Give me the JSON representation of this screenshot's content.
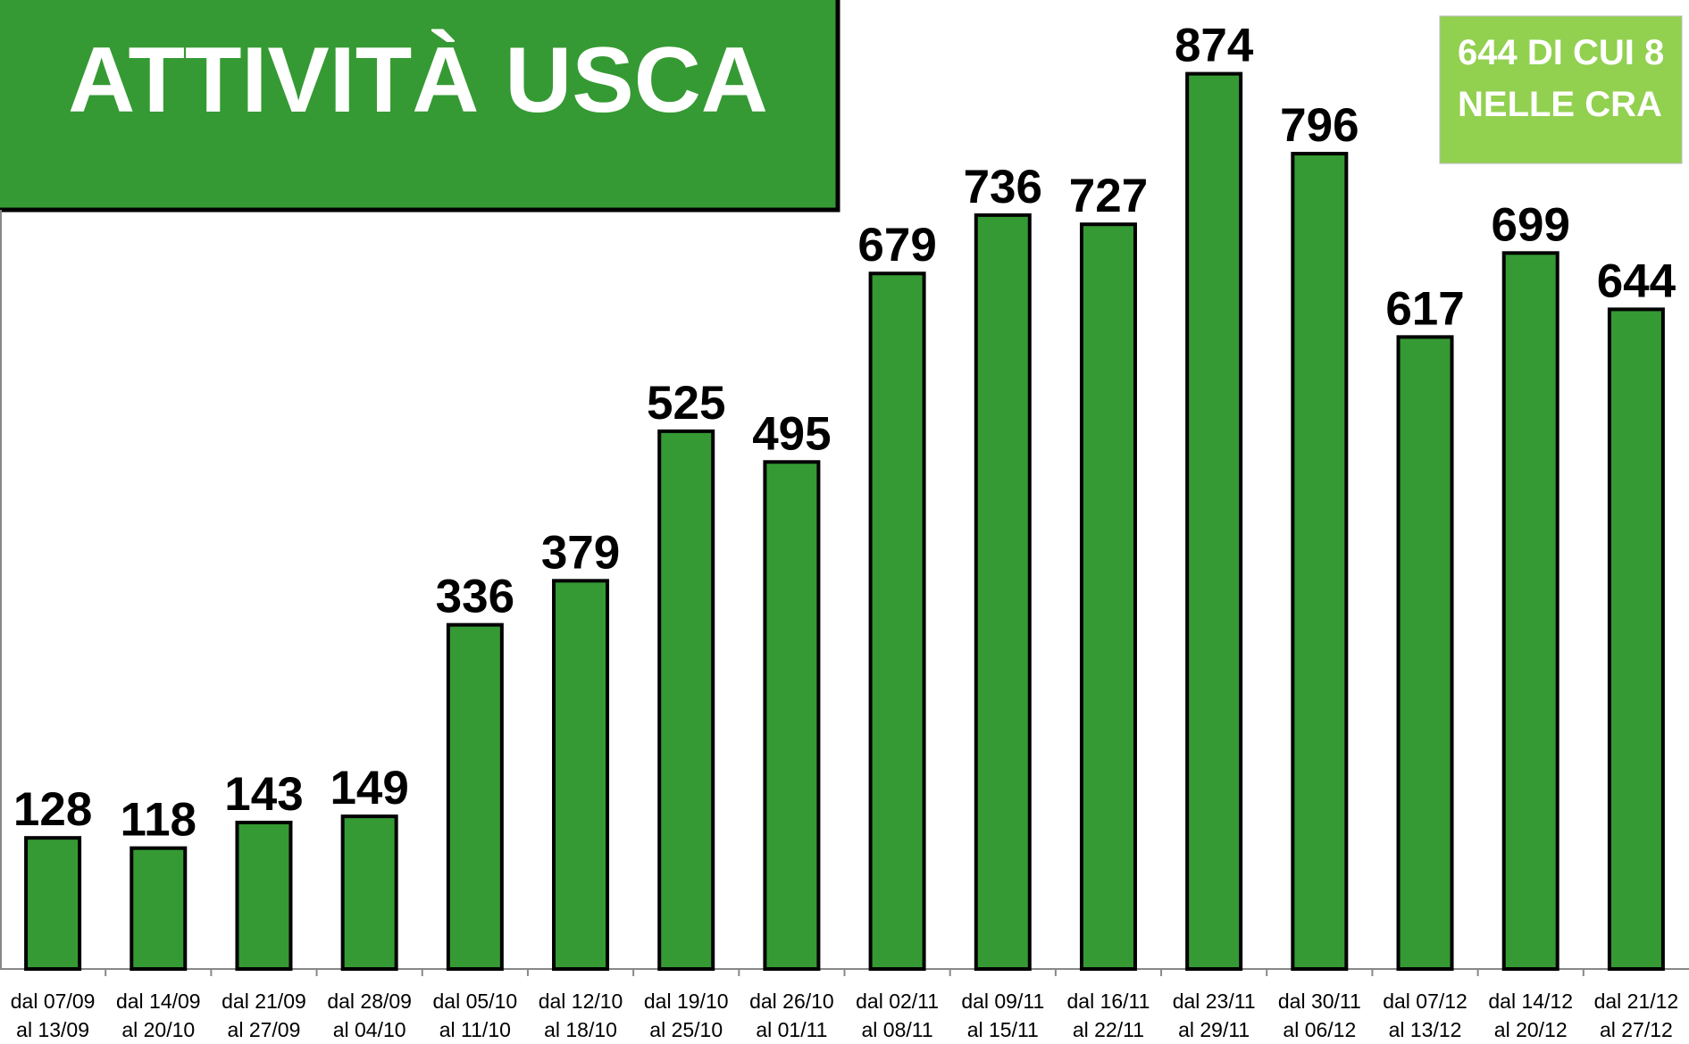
{
  "chart_data": {
    "type": "bar",
    "title": "ATTIVITÀ USCA",
    "annotation": [
      "644 DI CUI 8",
      "NELLE CRA"
    ],
    "categories": [
      [
        "dal 07/09",
        "al 13/09"
      ],
      [
        "dal 14/09",
        "al 20/10"
      ],
      [
        "dal 21/09",
        "al 27/09"
      ],
      [
        "dal 28/09",
        "al 04/10"
      ],
      [
        "dal 05/10",
        "al 11/10"
      ],
      [
        "dal 12/10",
        "al 18/10"
      ],
      [
        "dal 19/10",
        "al 25/10"
      ],
      [
        "dal 26/10",
        "al 01/11"
      ],
      [
        "dal 02/11",
        "al 08/11"
      ],
      [
        "dal 09/11",
        "al 15/11"
      ],
      [
        "dal 16/11",
        "al 22/11"
      ],
      [
        "dal 23/11",
        "al 29/11"
      ],
      [
        "dal 30/11",
        "al 06/12"
      ],
      [
        "dal 07/12",
        "al 13/12"
      ],
      [
        "dal 14/12",
        "al 20/12"
      ],
      [
        "dal 21/12",
        "al 27/12"
      ]
    ],
    "values": [
      128,
      118,
      143,
      149,
      336,
      379,
      525,
      495,
      679,
      736,
      727,
      874,
      796,
      617,
      699,
      644
    ],
    "color": "#359a33",
    "ylim": [
      0,
      946
    ],
    "grid": false
  }
}
